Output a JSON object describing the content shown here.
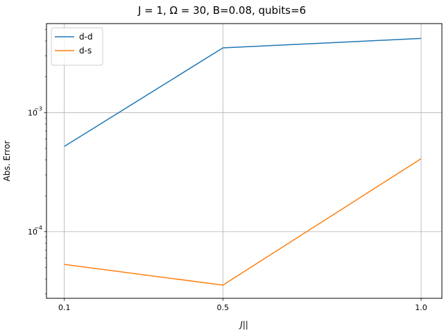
{
  "chart_data": {
    "type": "line",
    "title": "J = 1, Ω = 30, B=0.08, qubits=6",
    "xlabel": "J||",
    "ylabel": "Abs. Error",
    "x": [
      0.1,
      0.5,
      1.0
    ],
    "x_tick_labels": [
      "0.1",
      "0.5",
      "1.0"
    ],
    "y_scale": "log",
    "ylim": [
      2.75e-05,
      0.0056
    ],
    "y_major_ticks": [
      {
        "value": 0.0001,
        "base": "10",
        "exp": "−4"
      },
      {
        "value": 0.001,
        "base": "10",
        "exp": "−3"
      }
    ],
    "grid": true,
    "legend_position": "upper-left",
    "series": [
      {
        "name": "d-d",
        "color": "#1f77b4",
        "values": [
          0.00052,
          0.0035,
          0.0042
        ]
      },
      {
        "name": "d-s",
        "color": "#ff7f0e",
        "values": [
          5.3e-05,
          3.55e-05,
          0.00041
        ]
      }
    ]
  }
}
